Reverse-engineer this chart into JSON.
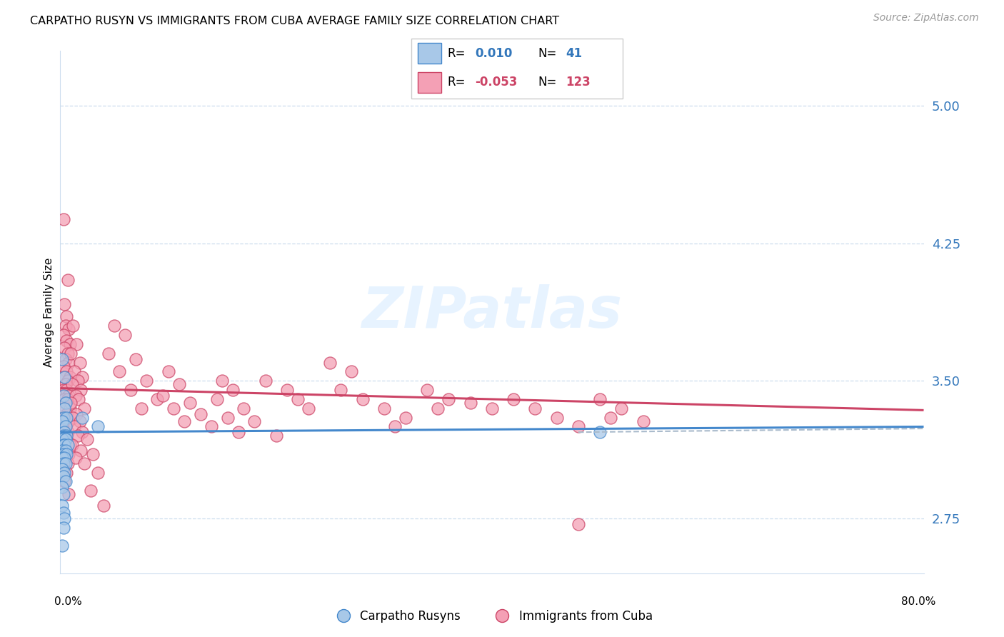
{
  "title": "CARPATHO RUSYN VS IMMIGRANTS FROM CUBA AVERAGE FAMILY SIZE CORRELATION CHART",
  "source": "Source: ZipAtlas.com",
  "ylabel": "Average Family Size",
  "legend_label1": "Carpatho Rusyns",
  "legend_label2": "Immigrants from Cuba",
  "color_blue": "#a8c8e8",
  "color_pink": "#f4a0b5",
  "color_blue_line": "#4488cc",
  "color_pink_line": "#cc4466",
  "color_blue_text": "#3377bb",
  "color_pink_text": "#cc4466",
  "yticks": [
    2.75,
    3.5,
    4.25,
    5.0
  ],
  "xlim": [
    0.0,
    0.8
  ],
  "ylim": [
    2.45,
    5.3
  ],
  "watermark": "ZIPatlas"
}
